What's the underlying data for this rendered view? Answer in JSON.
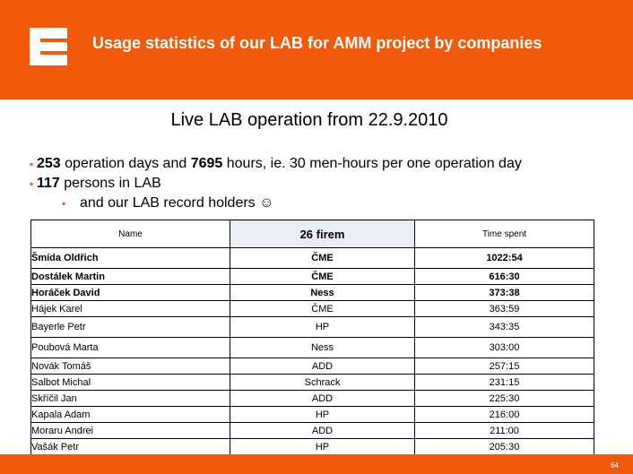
{
  "header": {
    "title": "Usage statistics of our LAB for AMM project by companies",
    "color": "#f15a0a"
  },
  "subtitle": "Live LAB operation from 22.9.2010",
  "bullets": [
    {
      "bold": "253",
      "text": " operation days and ",
      "bold2": "7695",
      "text2": " hours, ie. 30 men-hours per one operation day"
    },
    {
      "bold": "117",
      "text": " persons in LAB"
    },
    {
      "text": "and our LAB record holders ☺"
    }
  ],
  "table": {
    "headers": {
      "name": "Name",
      "company": "26 firem",
      "time": "Time spent"
    },
    "rows": [
      {
        "name": "Šmída Oldřich",
        "company": "ČME",
        "time": "1022:54"
      },
      {
        "name": "Dostálek Martin",
        "company": "ČME",
        "time": "616:30"
      },
      {
        "name": "Horáček David",
        "company": "Ness",
        "time": "373:38"
      },
      {
        "name": "Hájek Karel",
        "company": "ČME",
        "time": "363:59"
      },
      {
        "name": "Bayerle Petr",
        "company": "HP",
        "time": "343:35"
      },
      {
        "name": "Poubová Marta",
        "company": "Ness",
        "time": "303:00"
      },
      {
        "name": "Novák Tomáš",
        "company": "ADD",
        "time": "257:15"
      },
      {
        "name": "Salbot Michal",
        "company": "Schrack",
        "time": "231:15"
      },
      {
        "name": "Skříčil Jan",
        "company": "ADD",
        "time": "225:30"
      },
      {
        "name": "Kapala Adam",
        "company": "HP",
        "time": "216:00"
      },
      {
        "name": "Moraru Andrei",
        "company": "ADD",
        "time": "211:00"
      },
      {
        "name": "Vašák Petr",
        "company": "HP",
        "time": "205:30"
      }
    ]
  },
  "footer": {
    "page": "64"
  }
}
